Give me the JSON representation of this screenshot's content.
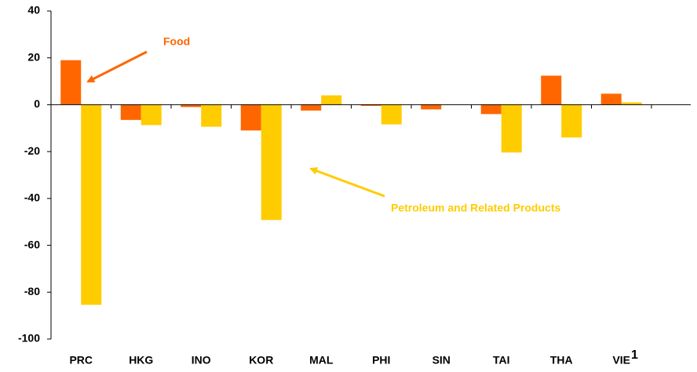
{
  "chart_data": {
    "type": "bar",
    "categories": [
      "PRC",
      "HKG",
      "INO",
      "KOR",
      "MAL",
      "PHI",
      "SIN",
      "TAI",
      "THA",
      "VIE"
    ],
    "category_notes": [
      null,
      null,
      null,
      null,
      null,
      null,
      null,
      null,
      null,
      "1"
    ],
    "series": [
      {
        "name": "Food",
        "color": "#ff6600",
        "values": [
          19,
          -6.5,
          -1,
          -11,
          -2.5,
          -0.5,
          -2,
          -4,
          12.4,
          4.7
        ]
      },
      {
        "name": "Petroleum and Related Products",
        "color": "#ffcc00",
        "values": [
          -85.4,
          -8.7,
          -9.4,
          -49.2,
          4,
          -8.4,
          0,
          -20.4,
          -14,
          1
        ]
      }
    ],
    "ylim": [
      -100,
      40
    ],
    "yticks": [
      -100,
      -80,
      -60,
      -40,
      -20,
      0,
      20,
      40
    ]
  }
}
